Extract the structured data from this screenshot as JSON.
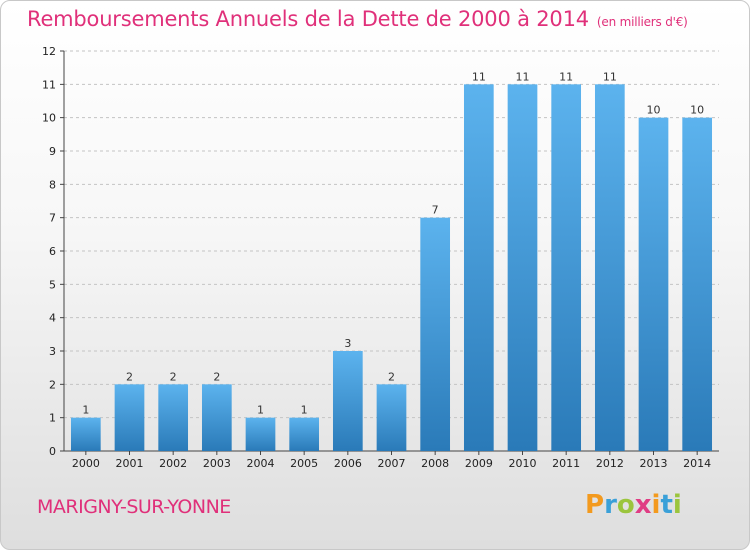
{
  "title": "Remboursements Annuels de la Dette de 2000 à 2014",
  "title_sub": "(en milliers d'€)",
  "place": "MARIGNY-SUR-YONNE",
  "brand": "Proxiti",
  "colors": {
    "accent": "#e0307a",
    "bar_top": "#5cb3ee",
    "bar_bottom": "#2a7ab8"
  },
  "chart_data": {
    "type": "bar",
    "title": "Remboursements Annuels de la Dette de 2000 à 2014",
    "subtitle": "(en milliers d'€)",
    "xlabel": "",
    "ylabel": "",
    "categories": [
      "2000",
      "2001",
      "2002",
      "2003",
      "2004",
      "2005",
      "2006",
      "2007",
      "2008",
      "2009",
      "2010",
      "2011",
      "2012",
      "2013",
      "2014"
    ],
    "values": [
      1,
      2,
      2,
      2,
      1,
      1,
      3,
      2,
      7,
      11,
      11,
      11,
      11,
      10,
      10
    ],
    "ylim": [
      0,
      12
    ],
    "yticks": [
      0,
      1,
      2,
      3,
      4,
      5,
      6,
      7,
      8,
      9,
      10,
      11,
      12
    ],
    "grid": "horizontal-dashed",
    "data_labels": true
  }
}
